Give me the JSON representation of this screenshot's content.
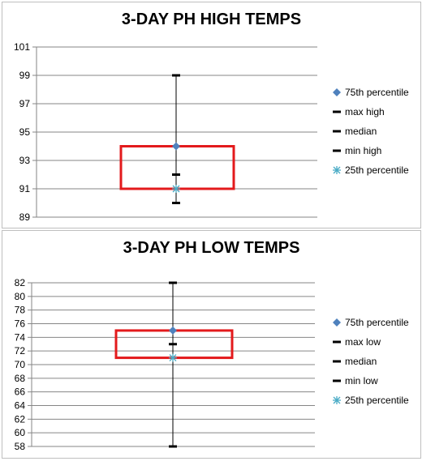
{
  "chart_data": [
    {
      "type": "box",
      "title": "3-DAY PH HIGH TEMPS",
      "ylim": [
        89,
        101
      ],
      "yticks": [
        89,
        91,
        93,
        95,
        97,
        99,
        101
      ],
      "legend_position": "right",
      "grid": true,
      "box": {
        "q1": 91,
        "q3": 94
      },
      "series": [
        {
          "name": "75th percentile",
          "marker": "diamond",
          "color": "#4f81bd",
          "value": 94
        },
        {
          "name": "max high",
          "marker": "dash",
          "color": "#000000",
          "value": 99
        },
        {
          "name": "median",
          "marker": "dash",
          "color": "#000000",
          "value": 92
        },
        {
          "name": "min high",
          "marker": "dash",
          "color": "#000000",
          "value": 90
        },
        {
          "name": "25th percentile",
          "marker": "star",
          "color": "#4bacc6",
          "value": 91
        }
      ]
    },
    {
      "type": "box",
      "title": "3-DAY PH LOW TEMPS",
      "ylim": [
        58,
        82
      ],
      "yticks": [
        58,
        60,
        62,
        64,
        66,
        68,
        70,
        72,
        74,
        76,
        78,
        80,
        82
      ],
      "legend_position": "right",
      "grid": true,
      "box": {
        "q1": 71,
        "q3": 75
      },
      "series": [
        {
          "name": "75th percentile",
          "marker": "diamond",
          "color": "#4f81bd",
          "value": 75
        },
        {
          "name": "max low",
          "marker": "dash",
          "color": "#000000",
          "value": 82
        },
        {
          "name": "median",
          "marker": "dash",
          "color": "#000000",
          "value": 73
        },
        {
          "name": "min low",
          "marker": "dash",
          "color": "#000000",
          "value": 58
        },
        {
          "name": "25th percentile",
          "marker": "star",
          "color": "#4bacc6",
          "value": 71
        }
      ]
    }
  ],
  "colors": {
    "box_stroke": "#e31a1c",
    "grid": "#868686",
    "whisker": "#000000"
  }
}
